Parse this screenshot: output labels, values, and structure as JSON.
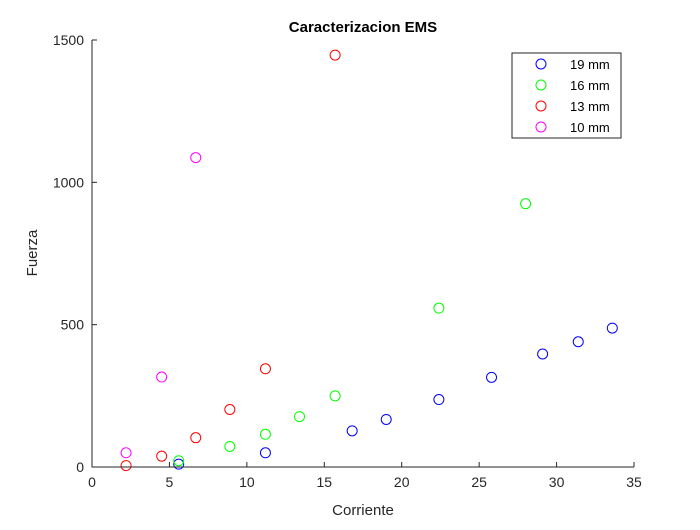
{
  "chart_data": {
    "type": "scatter",
    "title": "Caracterizacion EMS",
    "xlabel": "Corriente",
    "ylabel": "Fuerza",
    "xlim": [
      0,
      35
    ],
    "ylim": [
      0,
      1500
    ],
    "xticks": [
      "0",
      "5",
      "10",
      "15",
      "20",
      "25",
      "30",
      "35"
    ],
    "yticks": [
      "0",
      "500",
      "1000",
      "1500"
    ],
    "grid": false,
    "legend_position": "top-right",
    "series": [
      {
        "name": "19 mm",
        "color": "#0000ff",
        "x": [
          5.6,
          11.2,
          16.8,
          19.0,
          22.4,
          25.8,
          29.1,
          31.4,
          33.6
        ],
        "y": [
          10,
          50,
          127,
          167,
          237,
          315,
          397,
          440,
          488
        ]
      },
      {
        "name": "16 mm",
        "color": "#00ff00",
        "x": [
          5.6,
          8.9,
          11.2,
          13.4,
          15.7,
          22.4,
          28.0
        ],
        "y": [
          22,
          72,
          115,
          177,
          250,
          558,
          925
        ]
      },
      {
        "name": "13 mm",
        "color": "#ff0000",
        "x": [
          2.2,
          4.5,
          6.7,
          8.9,
          11.2,
          15.7
        ],
        "y": [
          5,
          38,
          103,
          202,
          345,
          1447
        ]
      },
      {
        "name": "10 mm",
        "color": "#ff00ff",
        "x": [
          2.2,
          4.5,
          6.7
        ],
        "y": [
          50,
          316,
          1087
        ]
      }
    ]
  }
}
